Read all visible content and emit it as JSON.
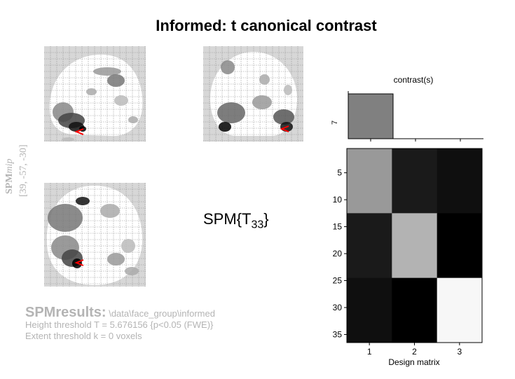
{
  "window": {
    "title": "Informed: t canonical contrast"
  },
  "mip": {
    "side_label_main": "SPM",
    "side_label_italic": "mip",
    "coords": "[39, -57, -30]",
    "cursor_color": "#ff0000"
  },
  "statistic": {
    "label": "SPM{T",
    "subscript": "33",
    "close": "}"
  },
  "results": {
    "heading": "SPMresults:",
    "path": " \\data\\face_group\\informed",
    "height_threshold": "Height threshold T = 5.676156  {p<0.05 (FWE)}",
    "extent_threshold": "Extent threshold k = 0 voxels"
  },
  "contrast": {
    "title": "contrast(s)",
    "index_label": "7",
    "weights": [
      1,
      0,
      0
    ],
    "bar_color": "#808080"
  },
  "design_matrix": {
    "xlabel": "Design matrix",
    "row_ticks": [
      "5",
      "10",
      "15",
      "20",
      "25",
      "30",
      "35"
    ],
    "col_ticks": [
      "1",
      "2",
      "3"
    ],
    "n_rows": 36,
    "blocks_gray": [
      [
        0.6,
        0.1,
        0.06
      ],
      [
        0.1,
        0.7,
        0.0
      ],
      [
        0.06,
        0.0,
        0.97
      ]
    ]
  }
}
